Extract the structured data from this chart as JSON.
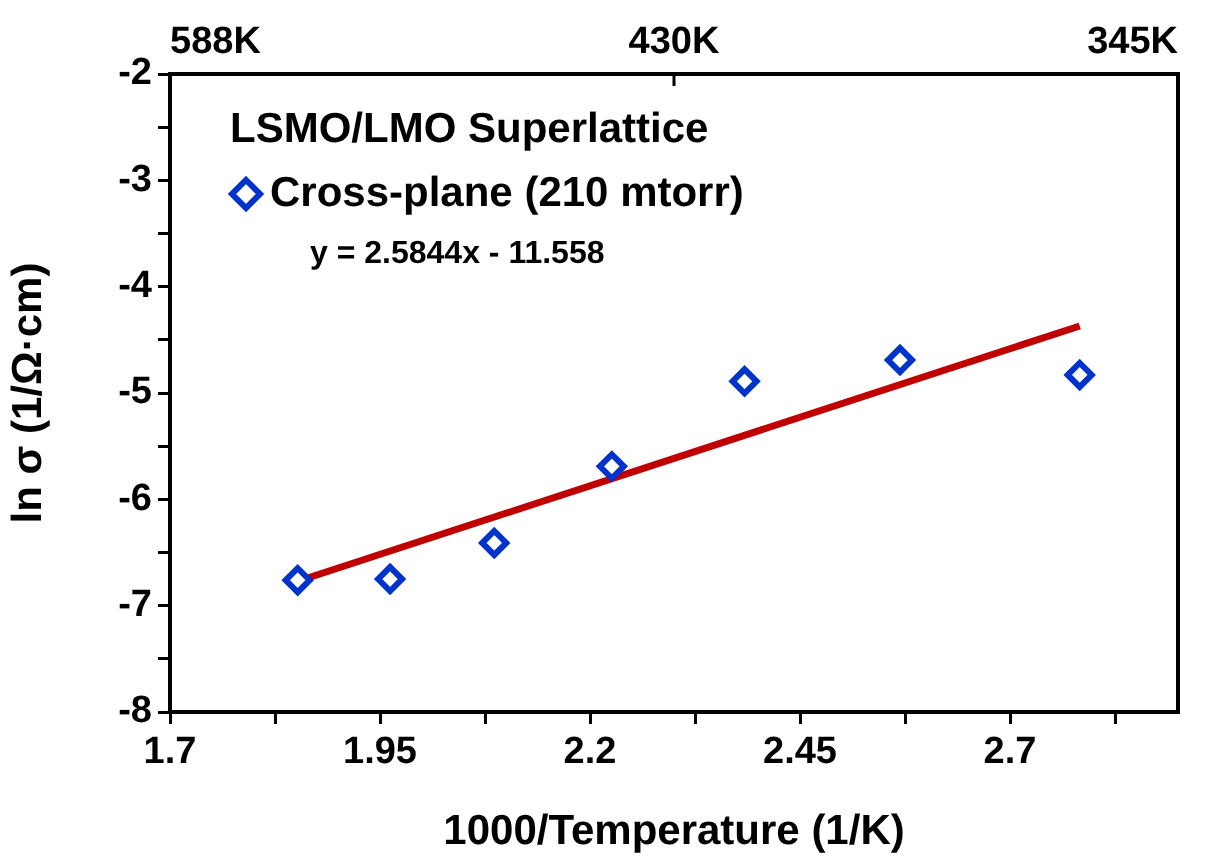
{
  "chart_data": {
    "type": "scatter",
    "xlabel": "1000/Temperature (1/K)",
    "ylabel": "ln σ (1/Ω·cm)",
    "legend_title": "LSMO/LMO Superlattice",
    "legend": "top left",
    "grid": false,
    "marker": "diamond",
    "annotations": [
      "y = 2.5844x - 11.558",
      "588K",
      "430K",
      "345K"
    ],
    "xlim": [
      1.7,
      2.9
    ],
    "xticks": [
      1.7,
      {
        "value": 1.825,
        "label": null
      },
      1.95,
      {
        "value": 2.075,
        "label": null
      },
      2.2,
      {
        "value": 2.325,
        "label": null
      },
      2.45,
      {
        "value": 2.575,
        "label": null
      },
      2.7,
      {
        "value": 2.825,
        "label": null
      }
    ],
    "ylim": [
      -8,
      -2
    ],
    "yticks": [
      -8,
      {
        "value": -7.5,
        "label": null
      },
      -7,
      {
        "value": -6.5,
        "label": null
      },
      -6,
      {
        "value": -5.5,
        "label": null
      },
      -5,
      {
        "value": -4.5,
        "label": null
      },
      -4,
      {
        "value": -3.5,
        "label": null
      },
      -3,
      {
        "value": -2.5,
        "label": null
      },
      -2
    ],
    "series": [
      {
        "name": "Cross-plane (210 mtorr)",
        "color": "#0033cc",
        "x": [
          1.852,
          1.962,
          2.086,
          2.226,
          2.384,
          2.569,
          2.783
        ],
        "values": [
          -6.76,
          -6.75,
          -6.41,
          -5.69,
          -4.89,
          -4.69,
          -4.83
        ]
      },
      {
        "type": "line",
        "marker": "none",
        "color": "#c00000",
        "x": [
          1.852,
          2.783
        ],
        "values": [
          -6.77,
          -4.37
        ]
      }
    ]
  }
}
